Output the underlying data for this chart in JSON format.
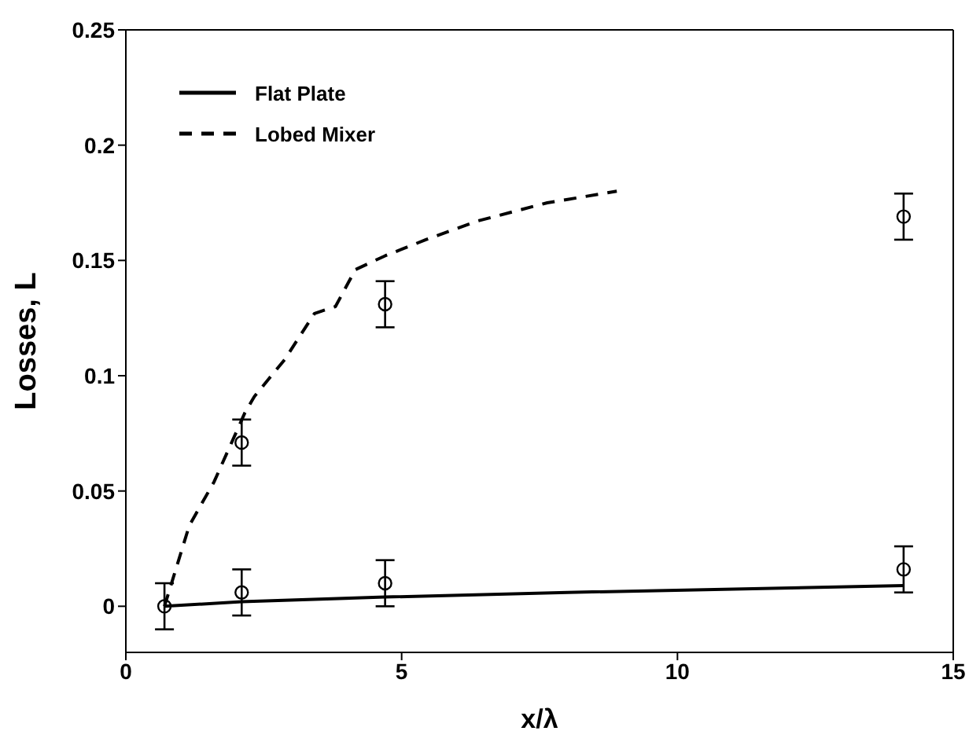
{
  "chart_data": {
    "type": "line",
    "xlabel": "x/λ",
    "ylabel": "Losses,  L",
    "xlim": [
      0,
      15
    ],
    "xticks": [
      0,
      5,
      10,
      15
    ],
    "ylim": [
      -0.02,
      0.25
    ],
    "yticks": [
      0,
      0.05,
      0.1,
      0.15,
      0.2,
      0.25
    ],
    "legend": "top left",
    "series": [
      {
        "name": "Flat Plate",
        "color": "#000000",
        "line_style": "solid",
        "marker": "none",
        "x": [
          0.7,
          2.1,
          4.7,
          8,
          14.1
        ],
        "values": [
          0,
          0.002,
          0.004,
          0.006,
          0.009
        ]
      },
      {
        "name": "Lobed Mixer",
        "color": "#000000",
        "line_style": "dashed",
        "marker": "none",
        "x": [
          0.7,
          1.15,
          1.6,
          2.16,
          2.33,
          2.88,
          3.42,
          3.8,
          4.16,
          4.7,
          5.44,
          6.36,
          7.64,
          8.9
        ],
        "values": [
          0,
          0.035,
          0.054,
          0.084,
          0.091,
          0.107,
          0.127,
          0.13,
          0.146,
          0.152,
          0.159,
          0.167,
          0.175,
          0.18
        ]
      },
      {
        "type": "scatter",
        "color": "#000000",
        "marker": "circle",
        "x": [
          0.7,
          2.1,
          4.7,
          14.1,
          2.1,
          4.7,
          14.1
        ],
        "values": [
          0,
          0.006,
          0.01,
          0.016,
          0.071,
          0.131,
          0.169
        ],
        "errors": [
          0.01,
          0.01,
          0.01,
          0.01,
          0.01,
          0.01,
          0.01
        ]
      }
    ]
  }
}
